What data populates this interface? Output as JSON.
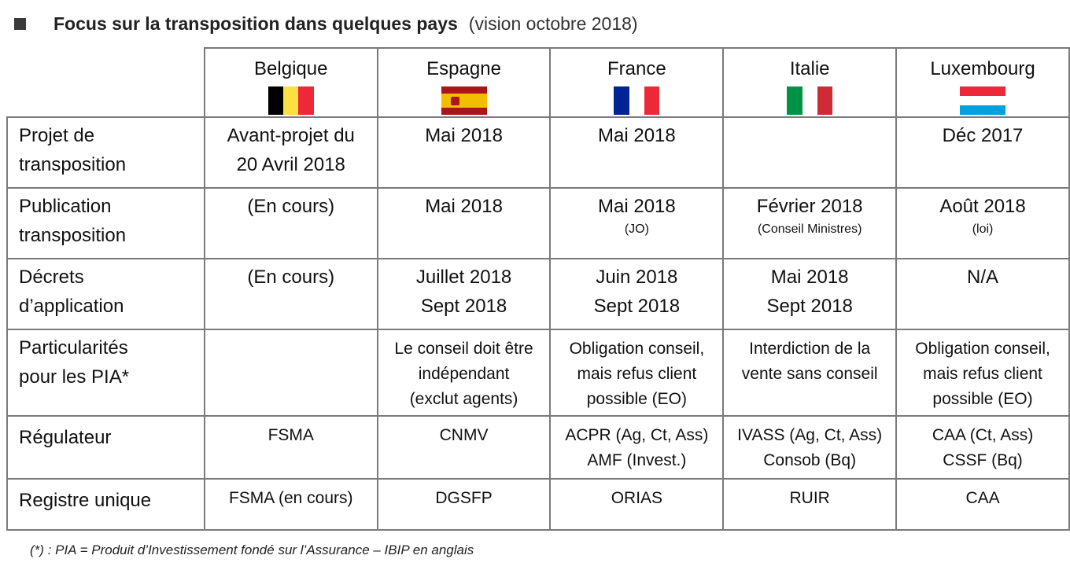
{
  "header": {
    "title": "Focus sur la transposition dans quelques pays",
    "subtitle": "(vision octobre 2018)"
  },
  "countries": [
    "Belgique",
    "Espagne",
    "France",
    "Italie",
    "Luxembourg"
  ],
  "flags": {
    "be": [
      "#000000",
      "#FAE042",
      "#ED2939"
    ],
    "es": [
      "#AA151B",
      "#F1BF00",
      "#AA151B"
    ],
    "fr": [
      "#002395",
      "#FFFFFF",
      "#ED2939"
    ],
    "it": [
      "#009246",
      "#FFFFFF",
      "#CE2B37"
    ],
    "lu": [
      "#ED2939",
      "#FFFFFF",
      "#00A1DE"
    ]
  },
  "rows": {
    "projet": {
      "label": [
        "Projet de",
        "transposition"
      ],
      "be": [
        "Avant-projet du",
        "20 Avril 2018"
      ],
      "es": "Mai 2018",
      "fr": "Mai 2018",
      "it": "",
      "lu": "Déc 2017"
    },
    "publication": {
      "label": [
        "Publication",
        "transposition"
      ],
      "be": "(En cours)",
      "es": "Mai 2018",
      "fr": "Mai 2018",
      "fr_note": "(JO)",
      "it": "Février 2018",
      "it_note": "(Conseil Ministres)",
      "lu": "Août 2018",
      "lu_note": "(loi)"
    },
    "decrets": {
      "label": [
        "Décrets",
        "d’application"
      ],
      "be": "(En cours)",
      "es": [
        "Juillet 2018",
        "Sept 2018"
      ],
      "fr": [
        "Juin 2018",
        "Sept 2018"
      ],
      "it": [
        "Mai 2018",
        "Sept 2018"
      ],
      "lu": "N/A"
    },
    "particularites": {
      "label": [
        "Particularités",
        "pour les PIA*"
      ],
      "be": "",
      "es": [
        "Le conseil doit être",
        "indépendant",
        "(exclut agents)"
      ],
      "fr": [
        "Obligation conseil,",
        "mais refus client",
        "possible (EO)"
      ],
      "it": [
        "Interdiction de la",
        "vente sans conseil"
      ],
      "lu": [
        "Obligation conseil,",
        "mais refus client",
        "possible (EO)"
      ]
    },
    "regulateur": {
      "label": "Régulateur",
      "be": "FSMA",
      "es": "CNMV",
      "fr": [
        "ACPR (Ag, Ct, Ass)",
        "AMF (Invest.)"
      ],
      "it": [
        "IVASS (Ag, Ct, Ass)",
        "Consob (Bq)"
      ],
      "lu": [
        "CAA (Ct, Ass)",
        "CSSF (Bq)"
      ]
    },
    "registre": {
      "label": "Registre unique",
      "be": "FSMA (en cours)",
      "es": "DGSFP",
      "fr": "ORIAS",
      "it": "RUIR",
      "lu": "CAA"
    }
  },
  "footnote": "(*) : PIA = Produit d’Investissement fondé sur l’Assurance – IBIP en anglais"
}
